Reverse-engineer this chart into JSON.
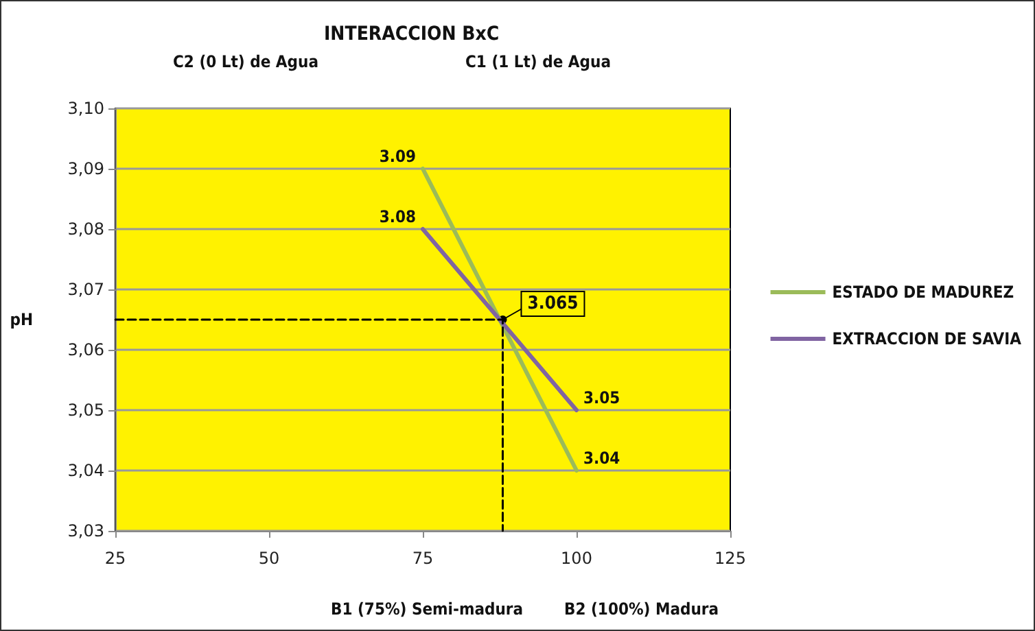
{
  "chart_data": {
    "type": "line",
    "title": "INTERACCION BxC",
    "ylabel": "pH",
    "annotations": [
      "C2 (0 Lt) de Agua",
      "C1 (1 Lt) de Agua",
      "B1 (75%) Semi-madura",
      "B2 (100%) Madura",
      {
        "text": "3.065",
        "x": 88,
        "y": 3.065
      }
    ],
    "series": [
      {
        "name": "ESTADO DE MADUREZ",
        "color": "#9bbb59",
        "x": [
          75,
          100
        ],
        "values": [
          3.09,
          3.04
        ],
        "value_labels": [
          "3.09",
          "3.04"
        ]
      },
      {
        "name": "EXTRACCION DE SAVIA",
        "color": "#8064a2",
        "x": [
          75,
          100
        ],
        "values": [
          3.08,
          3.05
        ],
        "value_labels": [
          "3.08",
          "3.05"
        ]
      },
      {
        "color": "#000000",
        "x": [
          25,
          88,
          88
        ],
        "values": [
          3.065,
          3.065,
          3.03
        ],
        "line_style": "dashed"
      }
    ],
    "marker": "none",
    "grid": "y",
    "legend": "right",
    "xlim": [
      25,
      125
    ],
    "xticks": [
      25,
      50,
      75,
      100,
      125
    ],
    "ylim": [
      3.03,
      3.1
    ],
    "yticks": [
      {
        "value": 3.03,
        "label": "3,03"
      },
      {
        "value": 3.04,
        "label": "3,04"
      },
      {
        "value": 3.05,
        "label": "3,05"
      },
      {
        "value": 3.06,
        "label": "3,06"
      },
      {
        "value": 3.07,
        "label": "3,07"
      },
      {
        "value": 3.08,
        "label": "3,08"
      },
      {
        "value": 3.09,
        "label": "3,09"
      },
      {
        "value": 3.1,
        "label": "3,10"
      }
    ]
  }
}
